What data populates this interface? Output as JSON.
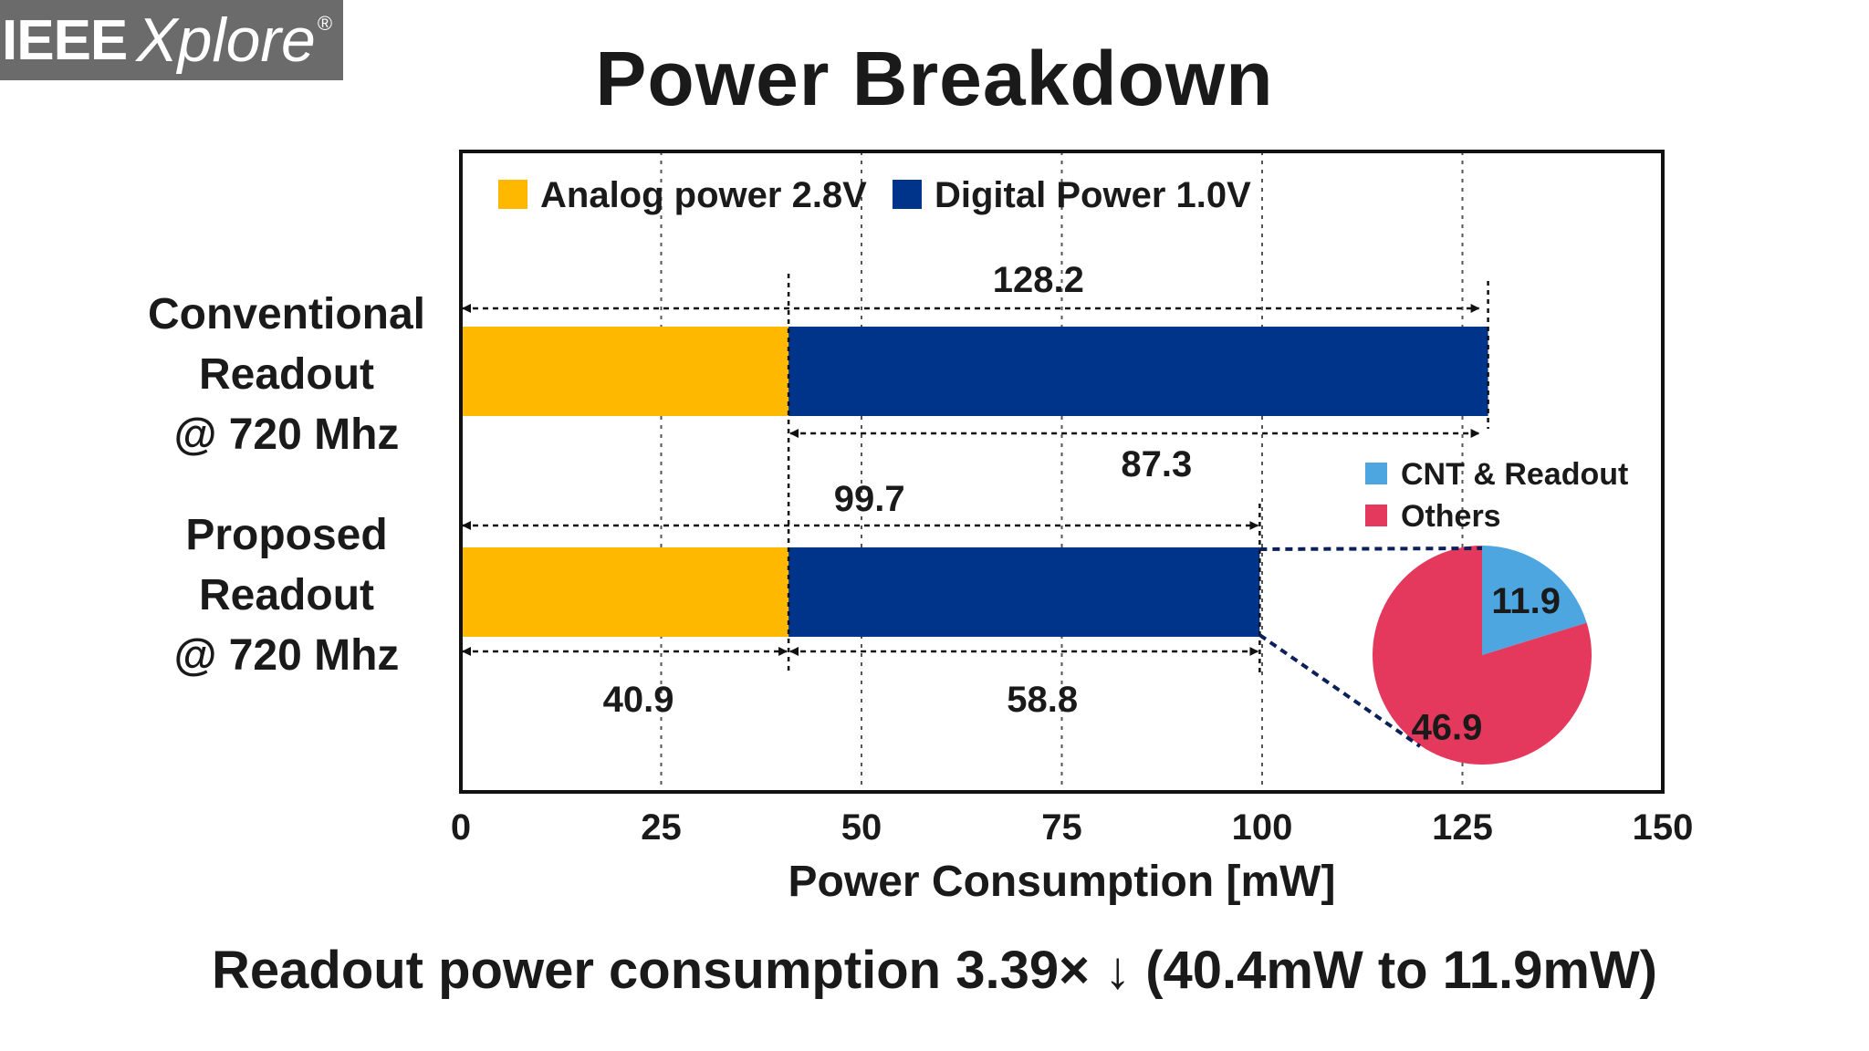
{
  "logo": {
    "text_bold": "IEEE",
    "text_italic": "Xplore",
    "mark": "®"
  },
  "page": {
    "title": "Power Breakdown",
    "footer": "Readout power consumption 3.39× ↓ (40.4mW to 11.9mW)"
  },
  "chart_data": {
    "type": "bar",
    "orientation": "horizontal",
    "stacked": true,
    "xlabel": "Power Consumption [mW]",
    "xlim": [
      0,
      150
    ],
    "xticks": [
      0,
      25,
      50,
      75,
      100,
      125,
      150
    ],
    "categories": [
      "Conventional\nReadout\n@ 720 Mhz",
      "Proposed\nReadout\n@ 720 Mhz"
    ],
    "category_lines": [
      [
        "Conventional",
        "Readout",
        "@ 720 Mhz"
      ],
      [
        "Proposed",
        "Readout",
        "@ 720 Mhz"
      ]
    ],
    "series": [
      {
        "name": "Analog power 2.8V",
        "color": "#FFB800",
        "values": [
          40.9,
          40.9
        ]
      },
      {
        "name": "Digital Power 1.0V",
        "color": "#00348A",
        "values": [
          87.3,
          58.8
        ]
      }
    ],
    "annotations": {
      "conventional_total": "128.2",
      "conventional_digital": "87.3",
      "proposed_total": "99.7",
      "proposed_analog": "40.9",
      "proposed_digital": "58.8"
    },
    "grid": "vertical dotted",
    "legend_position": "top-left",
    "inset_pie": {
      "type": "pie",
      "breakdown_of": "Proposed Readout Digital Power 1.0V",
      "slices": [
        {
          "name": "CNT & Readout",
          "value": 11.9,
          "label": "11.9",
          "color": "#4DA6E0"
        },
        {
          "name": "Others",
          "value": 46.9,
          "label": "46.9",
          "color": "#E4395C"
        }
      ],
      "legend_position": "top"
    }
  }
}
